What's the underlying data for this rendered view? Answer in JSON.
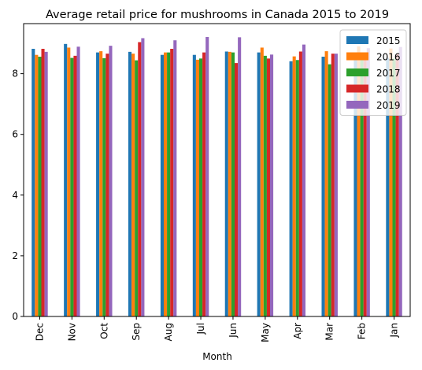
{
  "chart_data": {
    "type": "bar",
    "title": "Average retail price for mushrooms in Canada 2015 to 2019",
    "xlabel": "Month",
    "ylabel": "",
    "categories": [
      "Dec",
      "Nov",
      "Oct",
      "Sep",
      "Aug",
      "Jul",
      "Jun",
      "May",
      "Apr",
      "Mar",
      "Feb",
      "Jan"
    ],
    "series": [
      {
        "name": "2015",
        "color": "#1f77b4",
        "values": [
          8.82,
          8.98,
          8.7,
          8.72,
          8.62,
          8.62,
          8.73,
          8.7,
          8.41,
          8.56,
          8.58,
          8.52
        ]
      },
      {
        "name": "2016",
        "color": "#ff7f0e",
        "values": [
          8.62,
          8.86,
          8.74,
          8.66,
          8.7,
          8.46,
          8.72,
          8.86,
          8.57,
          8.74,
          8.9,
          8.83
        ]
      },
      {
        "name": "2017",
        "color": "#2ca02c",
        "values": [
          8.56,
          8.52,
          8.51,
          8.44,
          8.7,
          8.5,
          8.7,
          8.59,
          8.45,
          8.31,
          8.53,
          8.5
        ]
      },
      {
        "name": "2018",
        "color": "#d62728",
        "values": [
          8.82,
          8.59,
          8.66,
          9.04,
          8.82,
          8.7,
          8.35,
          8.5,
          8.73,
          8.66,
          8.62,
          8.65
        ]
      },
      {
        "name": "2019",
        "color": "#9467bd",
        "values": [
          8.72,
          8.89,
          8.92,
          9.17,
          9.1,
          9.21,
          9.2,
          8.63,
          8.96,
          8.66,
          8.84,
          8.88
        ]
      }
    ],
    "yticks": [
      0,
      2,
      4,
      6,
      8
    ],
    "ylim": [
      0,
      9.65
    ],
    "grid": false,
    "legend_position": "top-right"
  }
}
